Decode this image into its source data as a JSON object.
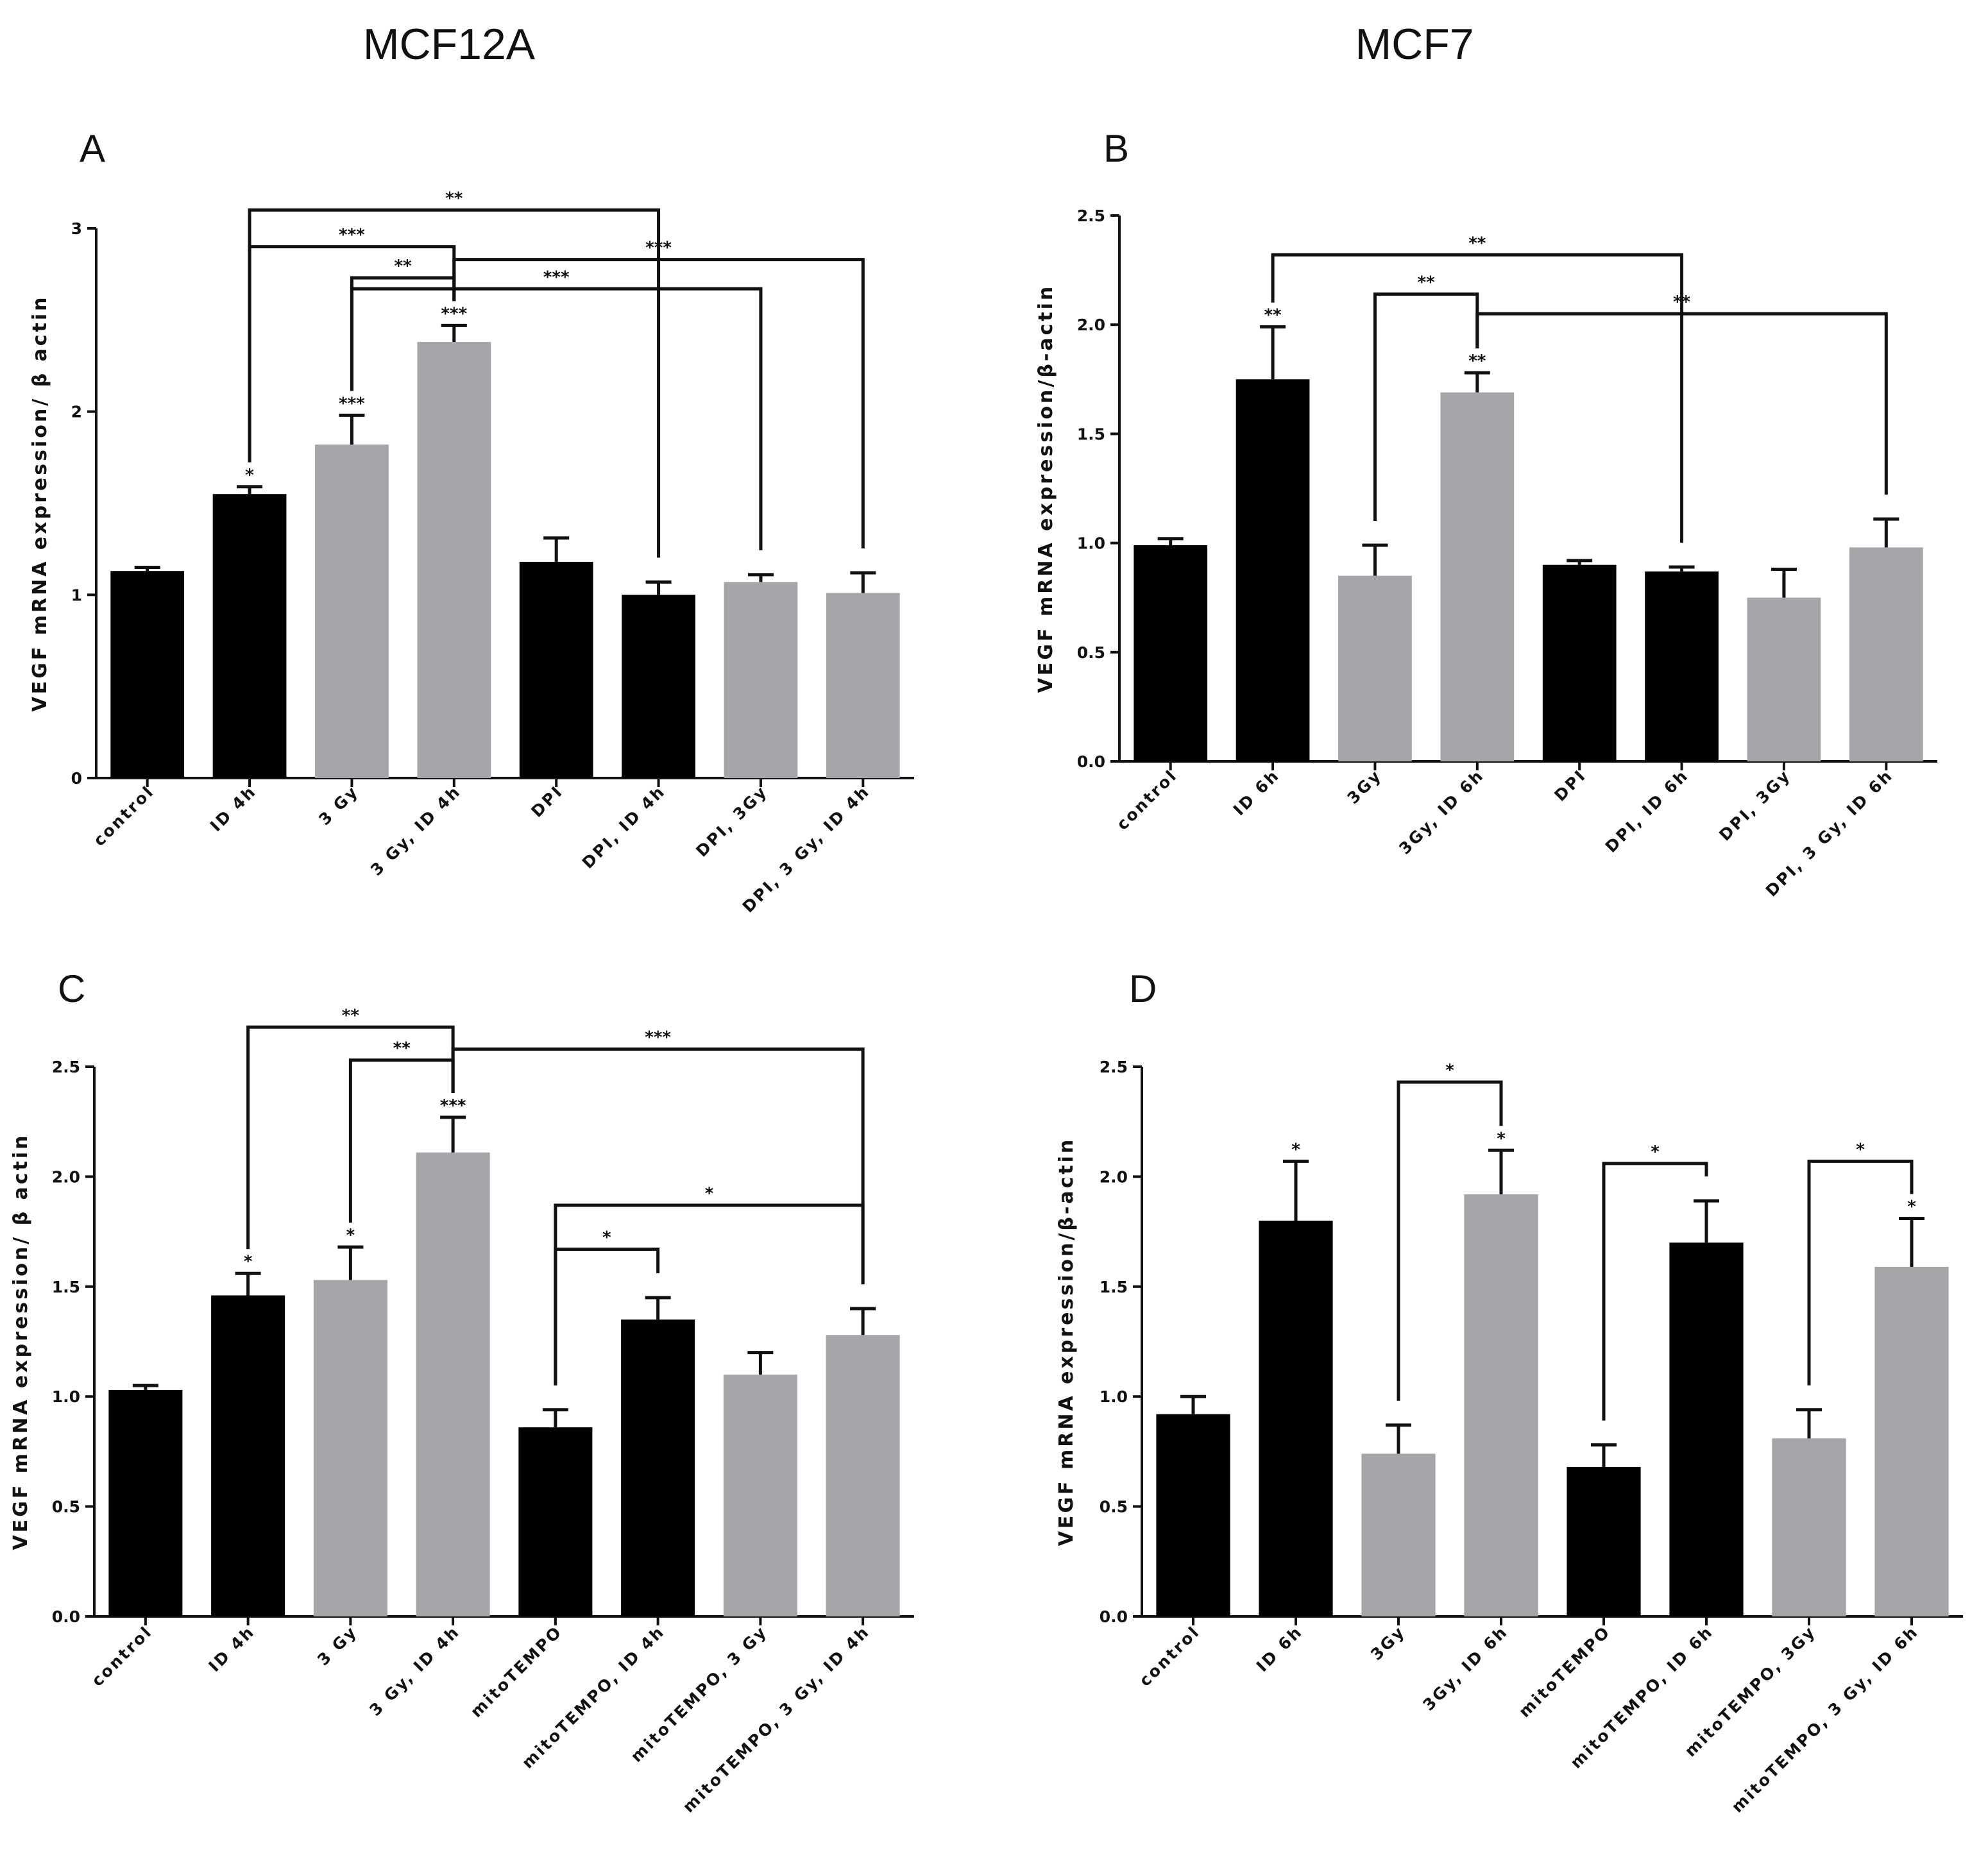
{
  "figure": {
    "column_titles": [
      "MCF12A",
      "MCF7"
    ]
  },
  "chart_data": [
    {
      "panel": "A",
      "type": "bar",
      "ylabel": "VEGF mRNA expression/ β actin",
      "ylim": [
        0,
        3
      ],
      "yticks": [
        0,
        1,
        2,
        3
      ],
      "ytick_labels": [
        "0",
        "1",
        "2",
        "3"
      ],
      "categories": [
        "control",
        "ID 4h",
        "3 Gy",
        "3 Gy, ID 4h",
        "DPI",
        "DPI, ID 4h",
        "DPI, 3Gy",
        "DPI, 3 Gy, ID 4h"
      ],
      "values": [
        1.13,
        1.55,
        1.82,
        2.38,
        1.18,
        1.0,
        1.07,
        1.01
      ],
      "errors": [
        0.02,
        0.04,
        0.16,
        0.09,
        0.13,
        0.07,
        0.04,
        0.11
      ],
      "colors": [
        "black",
        "black",
        "gray",
        "gray",
        "black",
        "black",
        "gray",
        "gray"
      ],
      "bar_stars": [
        "",
        "*",
        "***",
        "***",
        "",
        "",
        "",
        ""
      ],
      "brackets": [
        {
          "from": 1,
          "to": 5,
          "y": 3.1,
          "label": "**"
        },
        {
          "from": 1,
          "to": 3,
          "y": 2.9,
          "label": "***"
        },
        {
          "from": 2,
          "to": 3,
          "y": 2.73,
          "label": "**"
        },
        {
          "from": 2,
          "to": 6,
          "y": 2.67,
          "label": "***"
        },
        {
          "from": 3,
          "to": 7,
          "y": 2.83,
          "label": "***"
        }
      ]
    },
    {
      "panel": "B",
      "type": "bar",
      "ylabel": "VEGF mRNA expression/β-actin",
      "ylim": [
        0,
        2.5
      ],
      "yticks": [
        0,
        0.5,
        1,
        1.5,
        2,
        2.5
      ],
      "ytick_labels": [
        "0.0",
        "0.5",
        "1.0",
        "1.5",
        "2.0",
        "2.5"
      ],
      "categories": [
        "control",
        "ID 6h",
        "3Gy",
        "3Gy, ID 6h",
        "DPI",
        "DPI, ID 6h",
        "DPI, 3Gy",
        "DPI, 3 Gy, ID 6h"
      ],
      "values": [
        0.99,
        1.75,
        0.85,
        1.69,
        0.9,
        0.87,
        0.75,
        0.98
      ],
      "errors": [
        0.03,
        0.24,
        0.14,
        0.09,
        0.02,
        0.02,
        0.13,
        0.13
      ],
      "colors": [
        "black",
        "black",
        "gray",
        "gray",
        "black",
        "black",
        "gray",
        "gray"
      ],
      "bar_stars": [
        "",
        "**",
        "",
        "**",
        "",
        "",
        "",
        ""
      ],
      "brackets": [
        {
          "from": 1,
          "to": 5,
          "y": 2.32,
          "label": "**"
        },
        {
          "from": 2,
          "to": 3,
          "y": 2.14,
          "label": "**"
        },
        {
          "from": 3,
          "to": 7,
          "y": 2.05,
          "label": "**"
        }
      ]
    },
    {
      "panel": "C",
      "type": "bar",
      "ylabel": "VEGF mRNA expression/ β actin",
      "ylim": [
        0,
        2.5
      ],
      "yticks": [
        0,
        0.5,
        1,
        1.5,
        2,
        2.5
      ],
      "ytick_labels": [
        "0.0",
        "0.5",
        "1.0",
        "1.5",
        "2.0",
        "2.5"
      ],
      "categories": [
        "control",
        "ID 4h",
        "3 Gy",
        "3 Gy, ID 4h",
        "mitoTEMPO",
        "mitoTEMPO, ID 4h",
        "mitoTEMPO, 3 Gy",
        "mitoTEMPO, 3 Gy, ID 4h"
      ],
      "values": [
        1.03,
        1.46,
        1.53,
        2.11,
        0.86,
        1.35,
        1.1,
        1.28
      ],
      "errors": [
        0.02,
        0.1,
        0.15,
        0.16,
        0.08,
        0.1,
        0.1,
        0.12
      ],
      "colors": [
        "black",
        "black",
        "gray",
        "gray",
        "black",
        "black",
        "gray",
        "gray"
      ],
      "bar_stars": [
        "",
        "*",
        "*",
        "***",
        "",
        "",
        "",
        ""
      ],
      "brackets": [
        {
          "from": 1,
          "to": 3,
          "y": 2.68,
          "label": "**"
        },
        {
          "from": 2,
          "to": 3,
          "y": 2.53,
          "label": "**"
        },
        {
          "from": 3,
          "to": 7,
          "y": 2.58,
          "label": "***"
        },
        {
          "from": 4,
          "to": 7,
          "y": 1.87,
          "label": "*"
        },
        {
          "from": 4,
          "to": 5,
          "y": 1.67,
          "label": "*"
        }
      ]
    },
    {
      "panel": "D",
      "type": "bar",
      "ylabel": "VEGF mRNA expression/β-actin",
      "ylim": [
        0,
        2.5
      ],
      "yticks": [
        0,
        0.5,
        1,
        1.5,
        2,
        2.5
      ],
      "ytick_labels": [
        "0.0",
        "0.5",
        "1.0",
        "1.5",
        "2.0",
        "2.5"
      ],
      "categories": [
        "control",
        "ID 6h",
        "3Gy",
        "3Gy, ID 6h",
        "mitoTEMPO",
        "mitoTEMPO, ID 6h",
        "mitoTEMPO, 3Gy",
        "mitoTEMPO, 3 Gy, ID 6h"
      ],
      "values": [
        0.92,
        1.8,
        0.74,
        1.92,
        0.68,
        1.7,
        0.81,
        1.59
      ],
      "errors": [
        0.08,
        0.27,
        0.13,
        0.2,
        0.1,
        0.19,
        0.13,
        0.22
      ],
      "colors": [
        "black",
        "black",
        "gray",
        "gray",
        "black",
        "black",
        "gray",
        "gray"
      ],
      "bar_stars": [
        "",
        "*",
        "",
        "*",
        "",
        "",
        "",
        "*"
      ],
      "brackets": [
        {
          "from": 2,
          "to": 3,
          "y": 2.43,
          "label": "*"
        },
        {
          "from": 4,
          "to": 5,
          "y": 2.06,
          "label": "*"
        },
        {
          "from": 6,
          "to": 7,
          "y": 2.07,
          "label": "*"
        }
      ]
    }
  ],
  "palette": {
    "black": "#000000",
    "gray": "#a6a6aa",
    "axis": "#111111"
  }
}
